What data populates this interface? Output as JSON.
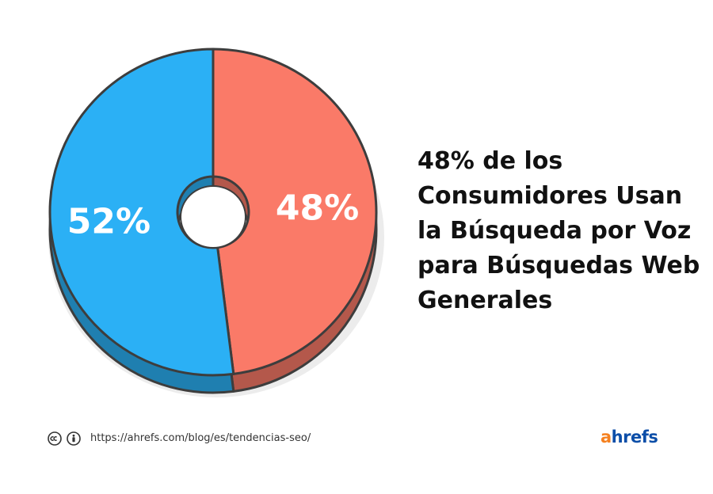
{
  "chart_data": {
    "type": "pie",
    "slices": [
      {
        "value": 48,
        "label": "48%",
        "color": "#fa7a68"
      },
      {
        "value": 52,
        "label": "52%",
        "color": "#2bb0f5"
      }
    ],
    "title_lines": [
      "48% de los",
      "Consumidores Usan",
      "la Búsqueda por Voz",
      "para Búsquedas Web",
      "Generales"
    ]
  },
  "footer": {
    "cc_icon": "cc-icon",
    "by_icon": "attribution-icon",
    "url": "https://ahrefs.com/blog/es/tendencias-seo/"
  },
  "brand": {
    "first": "a",
    "rest": "hrefs",
    "accent_color": "#f58120",
    "brand_color": "#0c4ea8"
  }
}
